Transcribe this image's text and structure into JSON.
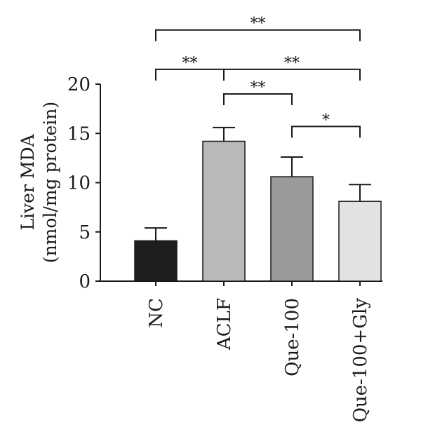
{
  "chart_data": {
    "type": "bar",
    "ylabel_line1": "Liver MDA",
    "ylabel_line2": "(nmol/mg protein)",
    "ylim": [
      0,
      20
    ],
    "yticks": [
      0,
      5,
      10,
      15,
      20
    ],
    "categories": [
      "NC",
      "ACLF",
      "Que-100",
      "Que-100+Gly"
    ],
    "values": [
      4.1,
      14.2,
      10.6,
      8.1
    ],
    "errors": [
      1.3,
      1.4,
      2.0,
      1.7
    ],
    "bar_colors": [
      "#1e1e1e",
      "#b9b9b9",
      "#9a9a9a",
      "#e2e2e2"
    ],
    "significance": [
      {
        "from": 0,
        "to": 3,
        "label": "**",
        "level": 25.5
      },
      {
        "from": 0,
        "to": 1,
        "label": "**",
        "level": 21.5
      },
      {
        "from": 1,
        "to": 3,
        "label": "**",
        "level": 21.5
      },
      {
        "from": 1,
        "to": 2,
        "label": "**",
        "level": 19.0
      },
      {
        "from": 2,
        "to": 3,
        "label": "*",
        "level": 15.7
      }
    ]
  }
}
